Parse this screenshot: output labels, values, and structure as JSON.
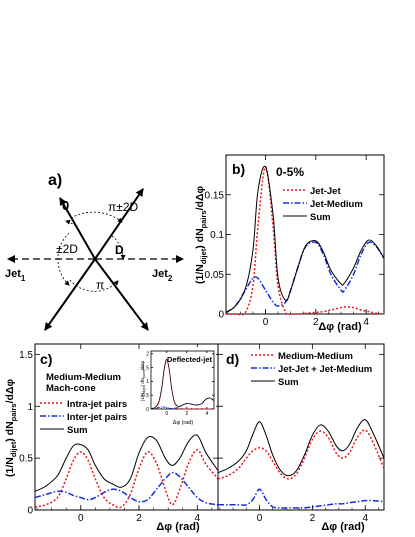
{
  "diagram_a": {
    "panel_label": "a)",
    "label_zero": "0",
    "label_pi_pm_2d": "π±2D",
    "label_pm_2d": "±2D",
    "label_d": "D",
    "label_pi": "π",
    "jet1_main": "Jet",
    "jet1_sub": "1",
    "jet2_main": "Jet",
    "jet2_sub": "2"
  },
  "colors": {
    "red": "#e8151b",
    "blue": "#1530d8",
    "black": "#000000"
  },
  "chart_data": [
    {
      "id": "b",
      "type": "line",
      "panel_label": "b)",
      "title": "0-5%",
      "ylabel_text": "(1/N_dijet) dN_pairs/dΔφ",
      "ylabel_parts": [
        "(1/N",
        "dijet",
        ") dN",
        "pairs",
        "/dΔφ"
      ],
      "xlabel": "Δφ (rad)",
      "xlim": [
        -1.57,
        4.71
      ],
      "ylim": [
        0,
        0.2
      ],
      "xticks": [
        0,
        2,
        4
      ],
      "xtick_labels": [
        "0",
        "2",
        "4"
      ],
      "yticks": [
        0,
        0.05,
        0.1,
        0.15
      ],
      "ytick_labels": [
        "0",
        "0.05",
        "0.1",
        "0.15"
      ],
      "legend": {
        "position": "top-right"
      },
      "x": [
        -1.57,
        -1.2,
        -0.8,
        -0.5,
        -0.3,
        0.0,
        0.3,
        0.5,
        0.8,
        1.0,
        1.3,
        1.6,
        2.0,
        2.3,
        2.6,
        3.0,
        3.14,
        3.5,
        3.8,
        4.1,
        4.4,
        4.71
      ],
      "series": [
        {
          "name": "Jet-Jet",
          "color": "red",
          "dash": "dot",
          "values": [
            0.0,
            0.0,
            0.002,
            0.035,
            0.11,
            0.185,
            0.11,
            0.035,
            0.002,
            0.0,
            0.0,
            0.001,
            0.002,
            0.003,
            0.005,
            0.008,
            0.009,
            0.008,
            0.005,
            0.003,
            0.001,
            0.0
          ]
        },
        {
          "name": "Jet-Medium",
          "color": "blue",
          "dash": "dashdot",
          "values": [
            0.002,
            0.01,
            0.03,
            0.045,
            0.045,
            0.03,
            0.015,
            0.01,
            0.015,
            0.03,
            0.06,
            0.085,
            0.09,
            0.075,
            0.05,
            0.03,
            0.03,
            0.05,
            0.075,
            0.09,
            0.085,
            0.07
          ]
        },
        {
          "name": "Sum",
          "color": "black",
          "dash": "solid",
          "values": [
            0.002,
            0.01,
            0.032,
            0.08,
            0.155,
            0.185,
            0.125,
            0.045,
            0.017,
            0.03,
            0.06,
            0.086,
            0.092,
            0.078,
            0.055,
            0.038,
            0.039,
            0.058,
            0.08,
            0.093,
            0.086,
            0.07
          ]
        }
      ]
    },
    {
      "id": "c",
      "type": "line",
      "panel_label": "c)",
      "title_line1": "Medium-Medium",
      "title_line2": "Mach-cone",
      "ylabel_text": "(1/N_dijet) dN_pairs/dΔφ",
      "ylabel_parts": [
        "(1/N",
        "dijet",
        ") dN",
        "pairs",
        "/dΔφ"
      ],
      "xlabel": "Δφ (rad)",
      "xlim": [
        -1.57,
        4.71
      ],
      "ylim": [
        0,
        1.6
      ],
      "xticks": [
        0,
        2,
        4
      ],
      "xtick_labels": [
        "0",
        "2",
        "4"
      ],
      "yticks": [
        0,
        0.5,
        1,
        1.5
      ],
      "ytick_labels": [
        "0",
        "0.5",
        "1",
        "1.5"
      ],
      "legend": {
        "position": "left"
      },
      "x": [
        -1.57,
        -1.2,
        -0.8,
        -0.5,
        -0.25,
        0.0,
        0.25,
        0.5,
        0.8,
        1.1,
        1.4,
        1.7,
        2.0,
        2.3,
        2.6,
        2.9,
        3.14,
        3.4,
        3.7,
        4.0,
        4.3,
        4.71
      ],
      "series": [
        {
          "name": "Intra-jet pairs",
          "color": "red",
          "dash": "dot",
          "values": [
            0.03,
            0.05,
            0.12,
            0.3,
            0.48,
            0.56,
            0.48,
            0.3,
            0.12,
            0.05,
            0.03,
            0.15,
            0.4,
            0.56,
            0.45,
            0.2,
            0.05,
            0.2,
            0.45,
            0.58,
            0.44,
            0.3
          ]
        },
        {
          "name": "Inter-jet pairs",
          "color": "blue",
          "dash": "dashdot",
          "values": [
            0.12,
            0.15,
            0.18,
            0.17,
            0.14,
            0.12,
            0.1,
            0.12,
            0.17,
            0.2,
            0.18,
            0.12,
            0.08,
            0.1,
            0.2,
            0.3,
            0.36,
            0.32,
            0.22,
            0.12,
            0.07,
            0.05
          ]
        },
        {
          "name": "Sum",
          "color": "black",
          "dash": "solid",
          "values": [
            0.18,
            0.23,
            0.33,
            0.5,
            0.62,
            0.63,
            0.58,
            0.43,
            0.3,
            0.25,
            0.22,
            0.3,
            0.55,
            0.7,
            0.67,
            0.5,
            0.43,
            0.5,
            0.66,
            0.72,
            0.55,
            0.38
          ]
        }
      ]
    },
    {
      "id": "c-inset",
      "type": "line",
      "title": "Deflected-jet",
      "ylabel_text": "(1/N_dijet) dN_pairs/dΔφ",
      "ylabel_parts": [
        "(1/N",
        "dijet",
        ") dN",
        "pairs",
        "/dΔφ"
      ],
      "xlabel": "Δφ (rad)",
      "xlim": [
        -1.57,
        4.71
      ],
      "ylim": [
        0,
        2.1
      ],
      "xticks": [
        0,
        2,
        4
      ],
      "xtick_labels": [
        "0",
        "2",
        "4"
      ],
      "yticks": [
        0,
        0.5,
        1,
        1.5,
        2
      ],
      "ytick_labels": [
        "0",
        "0.5",
        "1",
        "1.5",
        "2"
      ],
      "x": [
        -1.57,
        -1.2,
        -0.8,
        -0.5,
        -0.25,
        0.0,
        0.25,
        0.5,
        0.8,
        1.2,
        1.6,
        2.0,
        2.4,
        2.8,
        3.14,
        3.5,
        3.9,
        4.3,
        4.71
      ],
      "series": [
        {
          "name": "",
          "color": "red",
          "dash": "dot",
          "values": [
            0.0,
            0.02,
            0.2,
            0.7,
            1.4,
            1.75,
            1.4,
            0.7,
            0.2,
            0.02,
            0.0,
            0.0,
            0.0,
            0.0,
            0.0,
            0.0,
            0.0,
            0.0,
            0.0
          ]
        },
        {
          "name": "",
          "color": "blue",
          "dash": "dashdot",
          "values": [
            0.02,
            0.03,
            0.05,
            0.07,
            0.07,
            0.05,
            0.03,
            0.02,
            0.03,
            0.07,
            0.15,
            0.2,
            0.18,
            0.15,
            0.15,
            0.2,
            0.35,
            0.4,
            0.3
          ]
        },
        {
          "name": "",
          "color": "black",
          "dash": "solid",
          "values": [
            0.02,
            0.05,
            0.25,
            0.77,
            1.47,
            1.8,
            1.43,
            0.72,
            0.23,
            0.09,
            0.15,
            0.2,
            0.18,
            0.15,
            0.15,
            0.2,
            0.35,
            0.4,
            0.3
          ]
        }
      ]
    },
    {
      "id": "d",
      "type": "line",
      "panel_label": "d)",
      "xlabel": "Δφ (rad)",
      "xlim": [
        -1.57,
        4.71
      ],
      "ylim": [
        0,
        1.6
      ],
      "xticks": [
        0,
        2,
        4
      ],
      "xtick_labels": [
        "0",
        "2",
        "4"
      ],
      "legend": {
        "position": "top"
      },
      "x": [
        -1.57,
        -1.2,
        -0.8,
        -0.5,
        -0.25,
        0.0,
        0.25,
        0.5,
        0.8,
        1.1,
        1.4,
        1.7,
        2.0,
        2.3,
        2.6,
        2.9,
        3.14,
        3.4,
        3.7,
        4.0,
        4.3,
        4.71
      ],
      "series": [
        {
          "name": "Medium-Medium",
          "color": "red",
          "dash": "dot",
          "values": [
            0.3,
            0.33,
            0.4,
            0.5,
            0.57,
            0.6,
            0.57,
            0.47,
            0.35,
            0.3,
            0.35,
            0.5,
            0.68,
            0.76,
            0.7,
            0.55,
            0.5,
            0.55,
            0.7,
            0.77,
            0.65,
            0.4
          ]
        },
        {
          "name": "Jet-Jet + Jet-Medium",
          "color": "blue",
          "dash": "dashdot",
          "values": [
            0.05,
            0.05,
            0.05,
            0.05,
            0.1,
            0.2,
            0.1,
            0.03,
            0.02,
            0.02,
            0.02,
            0.02,
            0.03,
            0.04,
            0.05,
            0.06,
            0.06,
            0.07,
            0.08,
            0.09,
            0.09,
            0.08
          ]
        },
        {
          "name": "Sum",
          "color": "black",
          "dash": "solid",
          "values": [
            0.36,
            0.4,
            0.47,
            0.57,
            0.73,
            0.85,
            0.72,
            0.53,
            0.38,
            0.33,
            0.38,
            0.53,
            0.72,
            0.82,
            0.76,
            0.62,
            0.57,
            0.63,
            0.79,
            0.87,
            0.74,
            0.5
          ]
        }
      ]
    }
  ]
}
